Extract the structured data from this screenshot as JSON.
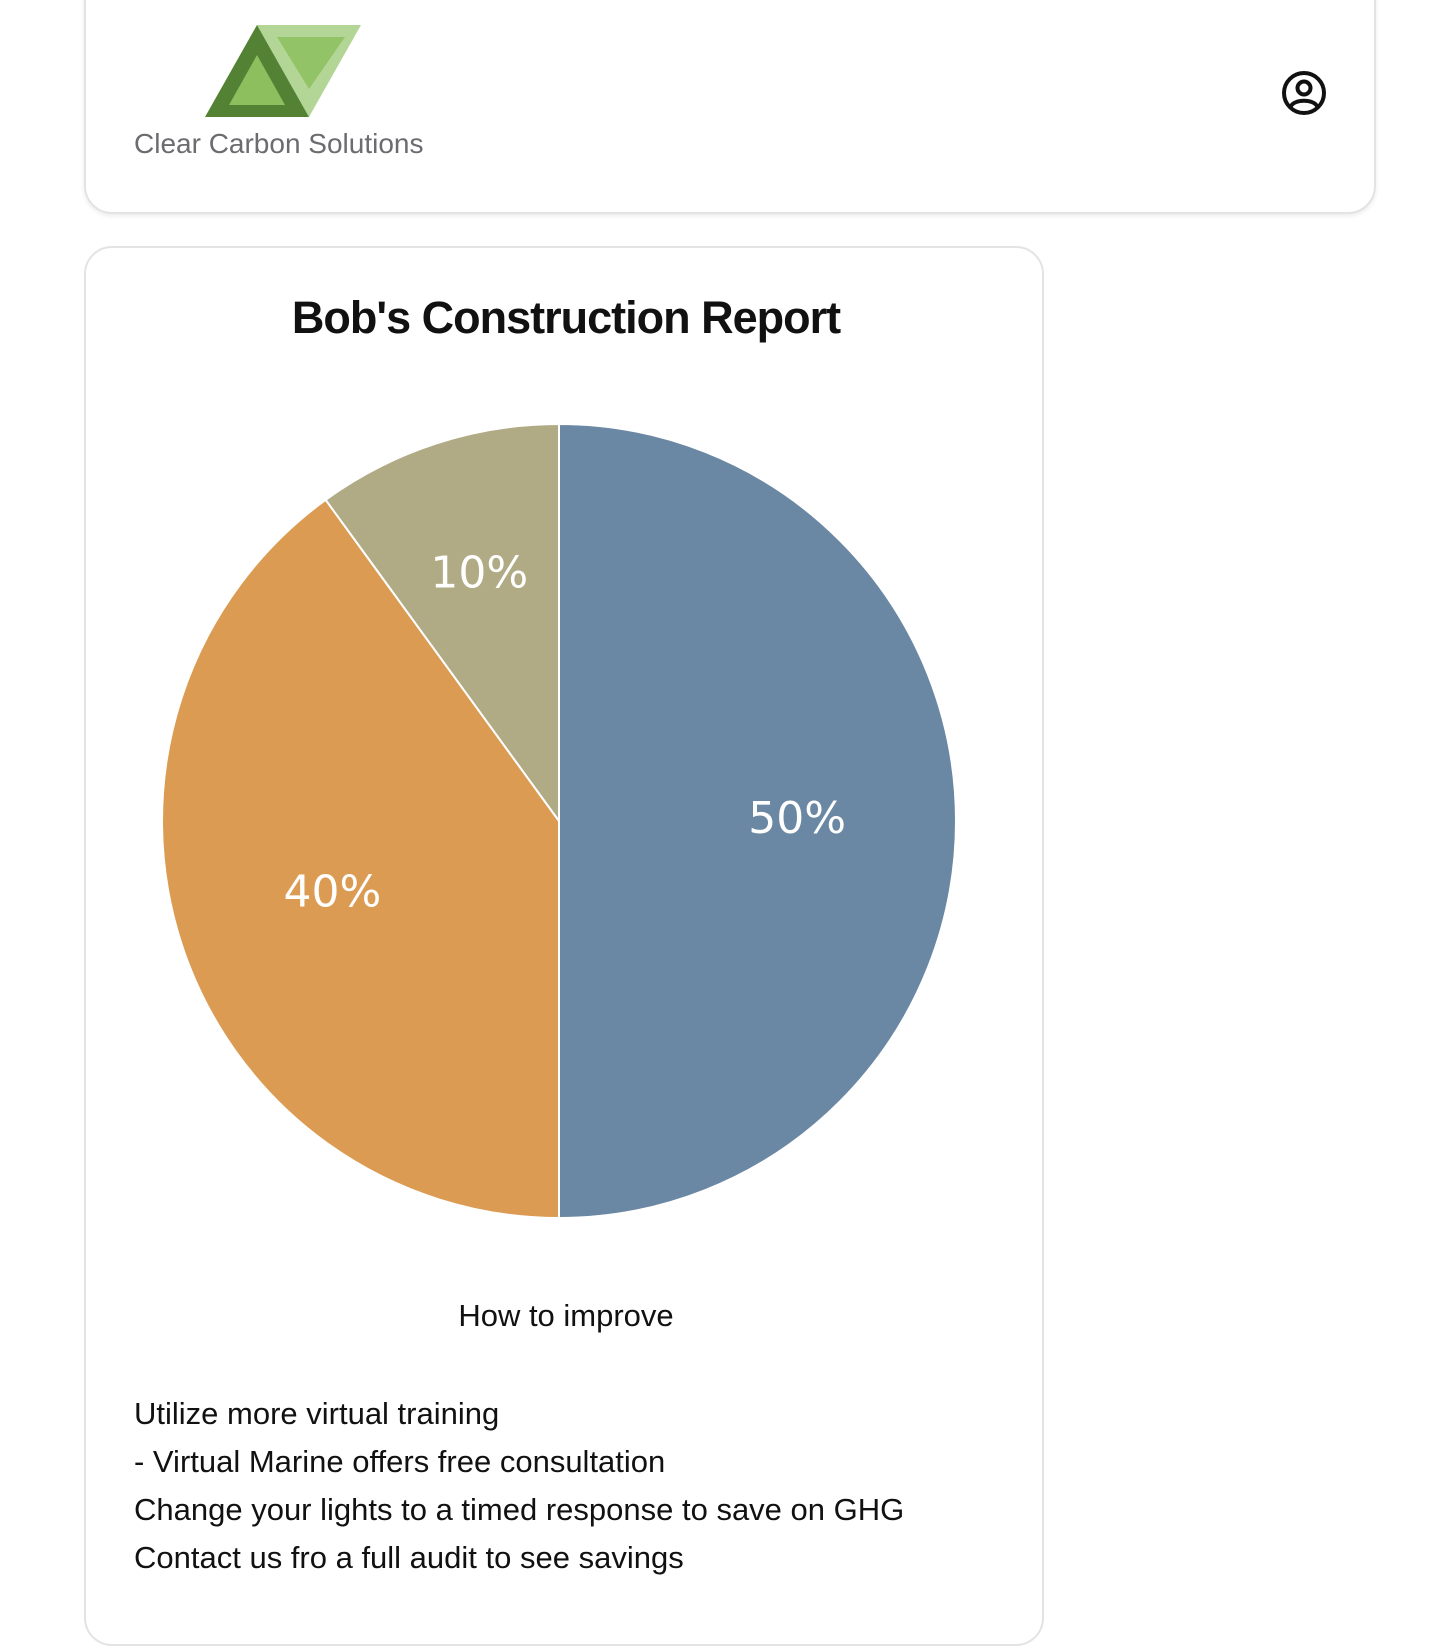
{
  "header": {
    "brand_name": "Clear Carbon Solutions",
    "logo_icon": "triangles-logo-icon",
    "user_icon": "user-circle-icon"
  },
  "report": {
    "title": "Bob's Construction Report",
    "improve_heading": "How to improve",
    "tips": [
      "Utilize more virtual training",
      "- Virtual Marine offers free consultation",
      "Change your lights to a timed response to save on GHG",
      "Contact us fro a full audit to see savings"
    ]
  },
  "chart_data": {
    "type": "pie",
    "title": "",
    "slices": [
      {
        "label": "50%",
        "value": 50,
        "color": "#6a87a3"
      },
      {
        "label": "40%",
        "value": 40,
        "color": "#dc9b52"
      },
      {
        "label": "10%",
        "value": 10,
        "color": "#b0aa85"
      }
    ],
    "start": "12 o'clock",
    "direction": "clockwise"
  },
  "colors": {
    "logo_dark": "#538235",
    "logo_mid": "#8dbf5e",
    "logo_light": "#b3d697",
    "card_border": "#e3e3e6"
  }
}
